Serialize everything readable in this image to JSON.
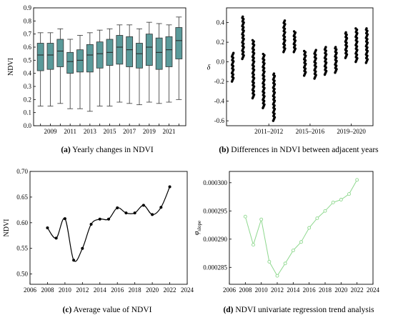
{
  "chart_data": [
    {
      "id": "a",
      "type": "box",
      "caption_letter": "(a)",
      "caption_text": " Yearly changes in NDVI",
      "ylabel": "NDVI",
      "ylim": [
        0,
        0.9
      ],
      "yticks": [
        0.0,
        0.1,
        0.2,
        0.3,
        0.4,
        0.5,
        0.6,
        0.7,
        0.8,
        0.9
      ],
      "ytick_labels": [
        "0.0",
        "0.1",
        "0.2",
        "0.3",
        "0.4",
        "0.5",
        "0.6",
        "0.7",
        "0.8",
        "0.9"
      ],
      "x_labels": [
        "2009",
        "2011",
        "2013",
        "2015",
        "2017",
        "2019",
        "2021"
      ],
      "categories": [
        2008,
        2009,
        2010,
        2011,
        2012,
        2013,
        2014,
        2015,
        2016,
        2017,
        2018,
        2019,
        2020,
        2021,
        2022
      ],
      "box_color": "#5a9a9a",
      "boxes": [
        {
          "min": 0.15,
          "q1": 0.42,
          "median": 0.54,
          "q3": 0.63,
          "max": 0.71
        },
        {
          "min": 0.15,
          "q1": 0.43,
          "median": 0.54,
          "q3": 0.63,
          "max": 0.71
        },
        {
          "min": 0.17,
          "q1": 0.45,
          "median": 0.57,
          "q3": 0.66,
          "max": 0.74
        },
        {
          "min": 0.13,
          "q1": 0.4,
          "median": 0.49,
          "q3": 0.56,
          "max": 0.66
        },
        {
          "min": 0.13,
          "q1": 0.41,
          "median": 0.5,
          "q3": 0.58,
          "max": 0.69
        },
        {
          "min": 0.11,
          "q1": 0.41,
          "median": 0.54,
          "q3": 0.62,
          "max": 0.71
        },
        {
          "min": 0.15,
          "q1": 0.44,
          "median": 0.55,
          "q3": 0.64,
          "max": 0.73
        },
        {
          "min": 0.15,
          "q1": 0.46,
          "median": 0.56,
          "q3": 0.66,
          "max": 0.74
        },
        {
          "min": 0.18,
          "q1": 0.47,
          "median": 0.6,
          "q3": 0.69,
          "max": 0.77
        },
        {
          "min": 0.17,
          "q1": 0.45,
          "median": 0.58,
          "q3": 0.68,
          "max": 0.77
        },
        {
          "min": 0.16,
          "q1": 0.44,
          "median": 0.55,
          "q3": 0.63,
          "max": 0.74
        },
        {
          "min": 0.18,
          "q1": 0.46,
          "median": 0.6,
          "q3": 0.7,
          "max": 0.79
        },
        {
          "min": 0.17,
          "q1": 0.43,
          "median": 0.56,
          "q3": 0.67,
          "max": 0.78
        },
        {
          "min": 0.18,
          "q1": 0.45,
          "median": 0.58,
          "q3": 0.68,
          "max": 0.77
        },
        {
          "min": 0.2,
          "q1": 0.51,
          "median": 0.65,
          "q3": 0.75,
          "max": 0.83
        }
      ]
    },
    {
      "id": "b",
      "type": "scatter",
      "caption_letter": "(b)",
      "caption_text": " Differences in NDVI between adjacent years",
      "ylabel": "δ",
      "ylim": [
        -0.65,
        0.55
      ],
      "yticks": [
        -0.6,
        -0.4,
        -0.2,
        0.0,
        0.2,
        0.4
      ],
      "ytick_labels": [
        "-0.6",
        "-0.4",
        "-0.2",
        "0.0",
        "0.2",
        "0.4"
      ],
      "x_labels": [
        "2011–2012",
        "2015–2016",
        "2019–2020"
      ],
      "categories": [
        "2008–2009",
        "2009–2010",
        "2010–2011",
        "2011–2012",
        "2012–2013",
        "2013–2014",
        "2014–2015",
        "2015–2016",
        "2016–2017",
        "2017–2018",
        "2018–2019",
        "2019–2020",
        "2020–2021",
        "2021–2022"
      ],
      "series": [
        {
          "min": -0.2,
          "max": 0.09
        },
        {
          "min": 0.03,
          "max": 0.46
        },
        {
          "min": -0.37,
          "max": 0.22
        },
        {
          "min": -0.47,
          "max": 0.08
        },
        {
          "min": -0.6,
          "max": -0.12
        },
        {
          "min": 0.1,
          "max": 0.42
        },
        {
          "min": 0.1,
          "max": 0.31
        },
        {
          "min": -0.14,
          "max": 0.11
        },
        {
          "min": -0.17,
          "max": 0.12
        },
        {
          "min": -0.13,
          "max": 0.15
        },
        {
          "min": -0.11,
          "max": 0.15
        },
        {
          "min": 0.04,
          "max": 0.3
        },
        {
          "min": 0.0,
          "max": 0.34
        },
        {
          "min": -0.01,
          "max": 0.34
        }
      ]
    },
    {
      "id": "c",
      "type": "line",
      "caption_letter": "(c)",
      "caption_text": " Average value of NDVI",
      "ylabel": "NDVI",
      "xlim": [
        2006,
        2024
      ],
      "ylim": [
        0.48,
        0.7
      ],
      "xticks": [
        2006,
        2008,
        2010,
        2012,
        2014,
        2016,
        2018,
        2020,
        2022,
        2024
      ],
      "yticks": [
        0.5,
        0.55,
        0.6,
        0.65,
        0.7
      ],
      "ytick_labels": [
        "0.50",
        "0.55",
        "0.60",
        "0.65",
        "0.70"
      ],
      "x": [
        2008,
        2009,
        2010,
        2011,
        2012,
        2013,
        2014,
        2015,
        2016,
        2017,
        2018,
        2019,
        2020,
        2021,
        2022
      ],
      "y": [
        0.59,
        0.57,
        0.608,
        0.527,
        0.55,
        0.597,
        0.607,
        0.607,
        0.629,
        0.619,
        0.619,
        0.634,
        0.616,
        0.63,
        0.67
      ],
      "color": "#000000"
    },
    {
      "id": "d",
      "type": "line",
      "caption_letter": "(d)",
      "caption_text": " NDVI univariate regression trend analysis",
      "ylabel_main": "φ",
      "ylabel_sub": "slope",
      "xlim": [
        2006,
        2024
      ],
      "ylim": [
        0.000282,
        0.000302
      ],
      "xticks": [
        2006,
        2008,
        2010,
        2012,
        2014,
        2016,
        2018,
        2020,
        2022,
        2024
      ],
      "yticks": [
        0.000285,
        0.00029,
        0.000295,
        0.0003
      ],
      "ytick_labels": [
        "0.000285",
        "0.000290",
        "0.000295",
        "0.000300"
      ],
      "x": [
        2008,
        2009,
        2010,
        2011,
        2012,
        2013,
        2014,
        2015,
        2016,
        2017,
        2018,
        2019,
        2020,
        2021,
        2022
      ],
      "y": [
        0.000294,
        0.000289,
        0.0002935,
        0.000286,
        0.0002835,
        0.0002857,
        0.000288,
        0.0002895,
        0.000292,
        0.0002937,
        0.000295,
        0.0002965,
        0.000297,
        0.000298,
        0.0003005
      ],
      "color": "#8fd88f"
    }
  ]
}
